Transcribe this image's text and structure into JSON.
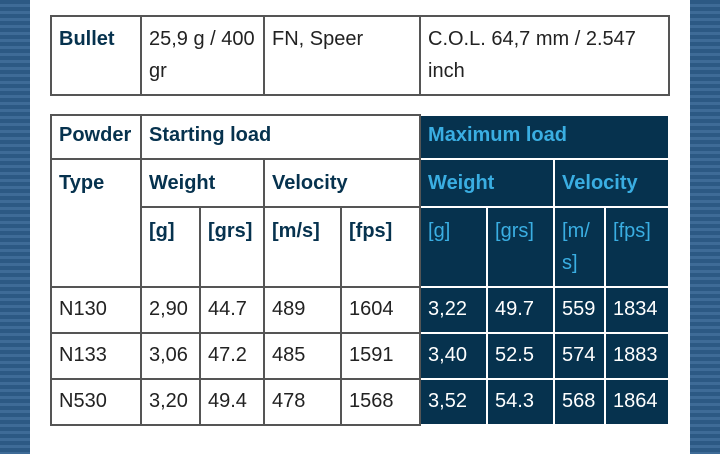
{
  "bullet": {
    "label": "Bullet",
    "weight": "25,9 g / 400 gr",
    "type": "FN, Speer",
    "col": "C.O.L. 64,7 mm / 2.547 inch"
  },
  "headers": {
    "powder": "Powder",
    "type": "Type",
    "starting": "Starting load",
    "maximum": "Maximum load",
    "weight": "Weight",
    "velocity": "Velocity",
    "units": [
      "[g]",
      "[grs]",
      "[m/s]",
      "[fps]"
    ]
  },
  "rows": [
    {
      "powder": "N130",
      "s": [
        "2,90",
        "44.7",
        "489",
        "1604"
      ],
      "m": [
        "3,22",
        "49.7",
        "559",
        "1834"
      ]
    },
    {
      "powder": "N133",
      "s": [
        "3,06",
        "47.2",
        "485",
        "1591"
      ],
      "m": [
        "3,40",
        "52.5",
        "574",
        "1883"
      ]
    },
    {
      "powder": "N530",
      "s": [
        "3,20",
        "49.4",
        "478",
        "1568"
      ],
      "m": [
        "3,52",
        "54.3",
        "568",
        "1864"
      ]
    }
  ],
  "colors": {
    "dark": "#06324e",
    "accent": "#3aaee2"
  }
}
